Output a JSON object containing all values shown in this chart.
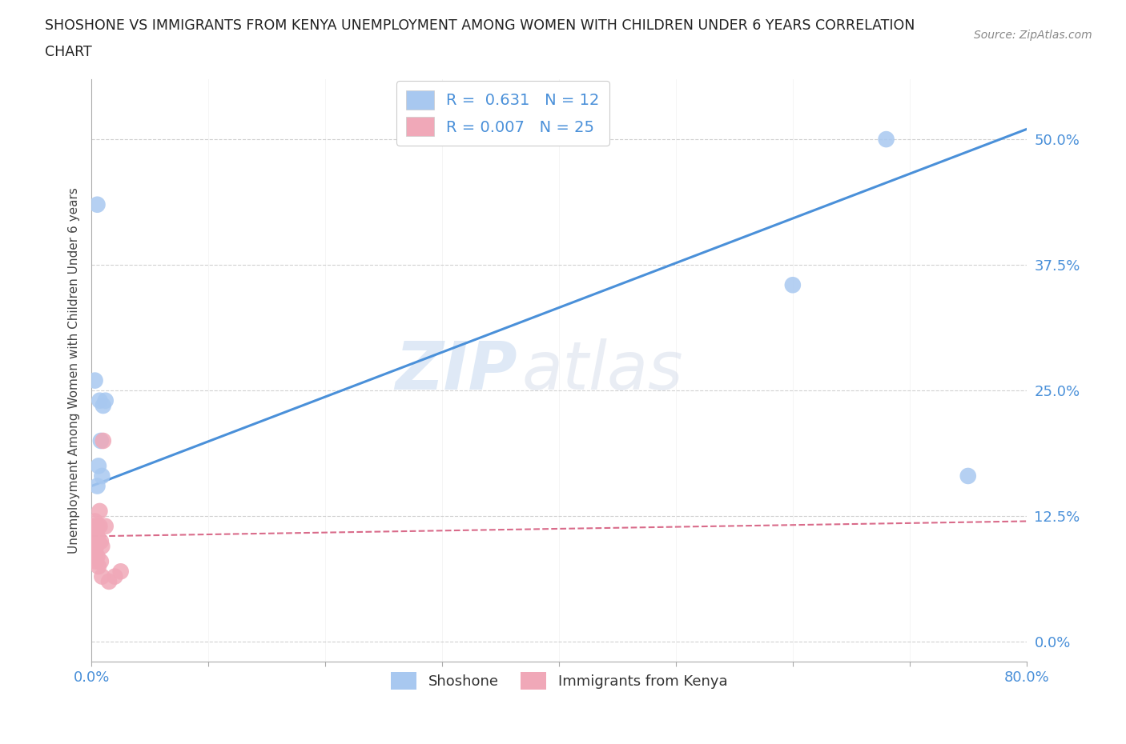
{
  "title_line1": "SHOSHONE VS IMMIGRANTS FROM KENYA UNEMPLOYMENT AMONG WOMEN WITH CHILDREN UNDER 6 YEARS CORRELATION",
  "title_line2": "CHART",
  "source": "Source: ZipAtlas.com",
  "ylabel": "Unemployment Among Women with Children Under 6 years",
  "xlim": [
    0.0,
    0.8
  ],
  "ylim": [
    -0.02,
    0.56
  ],
  "xticks": [
    0.0,
    0.1,
    0.2,
    0.3,
    0.4,
    0.5,
    0.6,
    0.7,
    0.8
  ],
  "yticks": [
    0.0,
    0.125,
    0.25,
    0.375,
    0.5
  ],
  "ytick_labels": [
    "0.0%",
    "12.5%",
    "25.0%",
    "37.5%",
    "50.0%"
  ],
  "xtick_labels": [
    "0.0%",
    "",
    "",
    "",
    "",
    "",
    "",
    "",
    "80.0%"
  ],
  "shoshone_color": "#a8c8f0",
  "kenya_color": "#f0a8b8",
  "shoshone_line_color": "#4a90d9",
  "kenya_line_color": "#d96b8a",
  "shoshone_R": 0.631,
  "shoshone_N": 12,
  "kenya_R": 0.007,
  "kenya_N": 25,
  "watermark_zip": "ZIP",
  "watermark_atlas": "atlas",
  "shoshone_points_x": [
    0.003,
    0.005,
    0.005,
    0.006,
    0.007,
    0.008,
    0.009,
    0.01,
    0.012,
    0.6,
    0.68,
    0.75
  ],
  "shoshone_points_y": [
    0.26,
    0.435,
    0.155,
    0.175,
    0.24,
    0.2,
    0.165,
    0.235,
    0.24,
    0.355,
    0.5,
    0.165
  ],
  "kenya_points_x": [
    0.001,
    0.002,
    0.002,
    0.002,
    0.003,
    0.003,
    0.003,
    0.004,
    0.004,
    0.005,
    0.005,
    0.005,
    0.006,
    0.006,
    0.007,
    0.007,
    0.008,
    0.008,
    0.009,
    0.009,
    0.01,
    0.012,
    0.015,
    0.02,
    0.025
  ],
  "kenya_points_y": [
    0.11,
    0.115,
    0.105,
    0.095,
    0.12,
    0.1,
    0.09,
    0.095,
    0.08,
    0.115,
    0.105,
    0.085,
    0.1,
    0.075,
    0.13,
    0.115,
    0.1,
    0.08,
    0.095,
    0.065,
    0.2,
    0.115,
    0.06,
    0.065,
    0.07
  ],
  "shoshone_line_x": [
    0.0,
    0.8
  ],
  "shoshone_line_y": [
    0.155,
    0.51
  ],
  "kenya_line_x": [
    0.0,
    0.8
  ],
  "kenya_line_y": [
    0.105,
    0.12
  ],
  "background_color": "#ffffff",
  "grid_color": "#d0d0d0",
  "tick_color": "#4a90d9",
  "title_color": "#333333",
  "legend_label1": "R =  0.631   N = 12",
  "legend_label2": "R = 0.007   N = 25"
}
